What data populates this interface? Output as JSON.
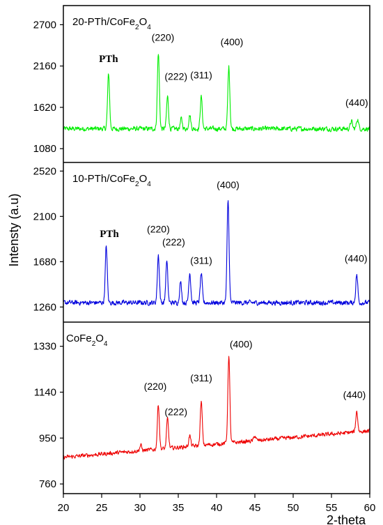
{
  "chart_data": {
    "type": "line",
    "xlabel": "2-theta",
    "ylabel": "Intensty (a.u)",
    "xlim": [
      20,
      60
    ],
    "x_ticks": [
      20,
      25,
      30,
      35,
      40,
      45,
      50,
      55,
      60
    ],
    "panels": [
      {
        "title_base": "20-PTh/CoFe",
        "title_sub1": "2",
        "title_mid": "O",
        "title_sub2": "4",
        "color": "#00ee00",
        "ylim": [
          900,
          2950
        ],
        "y_ticks": [
          1080,
          1620,
          2160,
          2700
        ],
        "baseline": 1340,
        "noise": 45,
        "peaks": [
          {
            "x": 25.9,
            "y": 2060
          },
          {
            "x": 32.4,
            "y": 2330
          },
          {
            "x": 33.6,
            "y": 1760
          },
          {
            "x": 35.4,
            "y": 1470
          },
          {
            "x": 36.5,
            "y": 1520
          },
          {
            "x": 38.0,
            "y": 1760
          },
          {
            "x": 41.6,
            "y": 2150
          },
          {
            "x": 57.6,
            "y": 1440
          },
          {
            "x": 58.4,
            "y": 1470
          }
        ],
        "annotations": [
          {
            "text": "PTh",
            "x": 25.9,
            "y": 2210,
            "bold": true
          },
          {
            "text": "(220)",
            "x": 33.0,
            "y": 2490
          },
          {
            "text": "(222)",
            "x": 34.7,
            "y": 1980
          },
          {
            "text": "(311)",
            "x": 38.0,
            "y": 2000
          },
          {
            "text": "(400)",
            "x": 42.0,
            "y": 2430
          },
          {
            "text": "(440)",
            "x": 58.3,
            "y": 1640
          }
        ]
      },
      {
        "title_base": "10-PTh/CoFe",
        "title_sub1": "2",
        "title_mid": "O",
        "title_sub2": "4",
        "color": "#0000dd",
        "ylim": [
          1120,
          2600
        ],
        "y_ticks": [
          1260,
          1680,
          2100,
          2520
        ],
        "baseline": 1300,
        "noise": 32,
        "peaks": [
          {
            "x": 25.6,
            "y": 1820
          },
          {
            "x": 32.4,
            "y": 1740
          },
          {
            "x": 33.5,
            "y": 1680
          },
          {
            "x": 35.3,
            "y": 1490
          },
          {
            "x": 36.5,
            "y": 1580
          },
          {
            "x": 38.0,
            "y": 1570
          },
          {
            "x": 41.5,
            "y": 2250
          },
          {
            "x": 58.3,
            "y": 1560
          }
        ],
        "annotations": [
          {
            "text": "PTh",
            "x": 26.0,
            "y": 1910,
            "bold": true
          },
          {
            "text": "(220)",
            "x": 32.4,
            "y": 1950
          },
          {
            "text": "(222)",
            "x": 34.4,
            "y": 1830
          },
          {
            "text": "(311)",
            "x": 38.0,
            "y": 1660
          },
          {
            "text": "(400)",
            "x": 41.5,
            "y": 2360
          },
          {
            "text": "(440)",
            "x": 58.2,
            "y": 1680
          }
        ]
      },
      {
        "title_base": "CoFe",
        "title_sub1": "2",
        "title_mid": "O",
        "title_sub2": "4",
        "color": "#ee0000",
        "ylim": [
          720,
          1430
        ],
        "y_ticks": [
          760,
          950,
          1140,
          1330
        ],
        "baseline_start": 870,
        "baseline_end": 980,
        "noise": 12,
        "peaks": [
          {
            "x": 30.1,
            "y": 920
          },
          {
            "x": 32.4,
            "y": 1090
          },
          {
            "x": 33.6,
            "y": 1030
          },
          {
            "x": 36.5,
            "y": 960
          },
          {
            "x": 38.0,
            "y": 1100
          },
          {
            "x": 41.6,
            "y": 1290
          },
          {
            "x": 45.0,
            "y": 960
          },
          {
            "x": 58.3,
            "y": 1060
          }
        ],
        "annotations": [
          {
            "text": "(220)",
            "x": 32.0,
            "y": 1150
          },
          {
            "text": "(222)",
            "x": 34.7,
            "y": 1045
          },
          {
            "text": "(311)",
            "x": 38.0,
            "y": 1185
          },
          {
            "text": "(400)",
            "x": 43.2,
            "y": 1325
          },
          {
            "text": "(440)",
            "x": 58.0,
            "y": 1115
          }
        ]
      }
    ]
  }
}
